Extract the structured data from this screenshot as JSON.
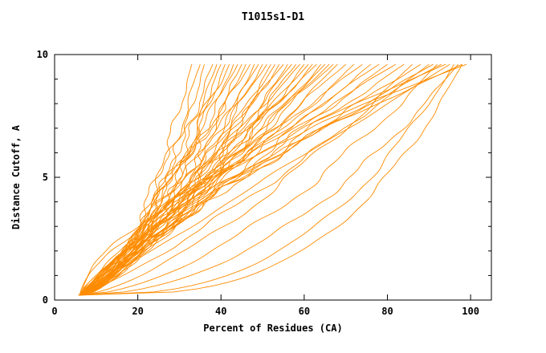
{
  "chart_data": {
    "type": "line",
    "title": "T1015s1-D1",
    "xlabel": "Percent of Residues (CA)",
    "ylabel": "Distance Cutoff, A",
    "xlim": [
      0,
      105
    ],
    "ylim": [
      0,
      10
    ],
    "x_ticks": [
      0,
      20,
      40,
      60,
      80,
      100
    ],
    "x_tick_labels": [
      "0",
      "20",
      "40",
      "60",
      "80",
      "100"
    ],
    "y_ticks": [
      0,
      5,
      10
    ],
    "y_tick_labels": [
      "0",
      "5",
      "10"
    ],
    "y_minor_ticks": [
      1,
      2,
      3,
      4,
      6,
      7,
      8,
      9
    ],
    "grid": false,
    "legend": "none",
    "line_color": "#ff8c00",
    "axis_color": "#000000",
    "curve_y_start": 0.2,
    "curve_y_top": 9.6,
    "curves": [
      {
        "x0": 6.0,
        "xe": 33,
        "p": 0.55,
        "a": 1.0,
        "f": 2.4,
        "ph": 0.5
      },
      {
        "x0": 6.5,
        "xe": 35,
        "p": 0.6,
        "a": 1.2,
        "f": 1.8,
        "ph": 1.2
      },
      {
        "x0": 5.8,
        "xe": 36,
        "p": 0.5,
        "a": 0.8,
        "f": 2.9,
        "ph": 2.0
      },
      {
        "x0": 6.2,
        "xe": 38,
        "p": 0.65,
        "a": 1.4,
        "f": 2.2,
        "ph": 3.1
      },
      {
        "x0": 6.0,
        "xe": 39,
        "p": 0.55,
        "a": 1.1,
        "f": 1.5,
        "ph": 4.2
      },
      {
        "x0": 6.8,
        "xe": 40,
        "p": 0.7,
        "a": 1.3,
        "f": 2.6,
        "ph": 5.0
      },
      {
        "x0": 6.1,
        "xe": 41,
        "p": 0.6,
        "a": 0.9,
        "f": 3.0,
        "ph": 0.9
      },
      {
        "x0": 6.4,
        "xe": 42,
        "p": 0.75,
        "a": 1.5,
        "f": 2.0,
        "ph": 1.7
      },
      {
        "x0": 5.9,
        "xe": 43,
        "p": 0.6,
        "a": 1.0,
        "f": 2.5,
        "ph": 2.6
      },
      {
        "x0": 6.3,
        "xe": 44,
        "p": 0.8,
        "a": 1.2,
        "f": 1.7,
        "ph": 3.8
      },
      {
        "x0": 6.0,
        "xe": 45,
        "p": 0.65,
        "a": 1.6,
        "f": 2.8,
        "ph": 4.9
      },
      {
        "x0": 6.6,
        "xe": 46,
        "p": 0.7,
        "a": 1.1,
        "f": 2.1,
        "ph": 0.2
      },
      {
        "x0": 6.2,
        "xe": 47,
        "p": 0.85,
        "a": 1.3,
        "f": 2.7,
        "ph": 1.4
      },
      {
        "x0": 5.7,
        "xe": 48,
        "p": 0.6,
        "a": 0.9,
        "f": 1.9,
        "ph": 2.3
      },
      {
        "x0": 6.5,
        "xe": 49,
        "p": 0.75,
        "a": 1.4,
        "f": 2.3,
        "ph": 3.5
      },
      {
        "x0": 6.1,
        "xe": 50,
        "p": 0.7,
        "a": 1.0,
        "f": 3.1,
        "ph": 4.6
      },
      {
        "x0": 6.3,
        "xe": 51,
        "p": 0.9,
        "a": 1.5,
        "f": 1.6,
        "ph": 5.5
      },
      {
        "x0": 6.0,
        "xe": 52,
        "p": 0.65,
        "a": 1.2,
        "f": 2.4,
        "ph": 0.7
      },
      {
        "x0": 6.7,
        "xe": 53,
        "p": 0.8,
        "a": 1.1,
        "f": 2.0,
        "ph": 1.9
      },
      {
        "x0": 6.2,
        "xe": 54,
        "p": 0.75,
        "a": 1.6,
        "f": 2.6,
        "ph": 3.0
      },
      {
        "x0": 5.9,
        "xe": 55,
        "p": 0.9,
        "a": 1.0,
        "f": 2.2,
        "ph": 4.1
      },
      {
        "x0": 6.4,
        "xe": 56,
        "p": 0.7,
        "a": 1.3,
        "f": 2.9,
        "ph": 5.2
      },
      {
        "x0": 6.1,
        "xe": 57,
        "p": 0.85,
        "a": 1.2,
        "f": 1.8,
        "ph": 0.4
      },
      {
        "x0": 6.5,
        "xe": 58,
        "p": 0.8,
        "a": 1.5,
        "f": 2.5,
        "ph": 1.6
      },
      {
        "x0": 6.0,
        "xe": 59,
        "p": 0.95,
        "a": 1.1,
        "f": 2.1,
        "ph": 2.8
      },
      {
        "x0": 6.3,
        "xe": 60,
        "p": 0.75,
        "a": 1.4,
        "f": 2.7,
        "ph": 3.9
      },
      {
        "x0": 6.6,
        "xe": 61,
        "p": 0.9,
        "a": 1.0,
        "f": 1.5,
        "ph": 5.1
      },
      {
        "x0": 6.1,
        "xe": 62,
        "p": 0.85,
        "a": 1.3,
        "f": 2.3,
        "ph": 0.1
      },
      {
        "x0": 5.8,
        "xe": 63,
        "p": 1.0,
        "a": 1.2,
        "f": 3.0,
        "ph": 1.3
      },
      {
        "x0": 6.4,
        "xe": 64,
        "p": 0.8,
        "a": 1.5,
        "f": 1.9,
        "ph": 2.5
      },
      {
        "x0": 6.2,
        "xe": 65,
        "p": 0.95,
        "a": 1.1,
        "f": 2.6,
        "ph": 3.7
      },
      {
        "x0": 6.0,
        "xe": 66,
        "p": 0.9,
        "a": 1.4,
        "f": 2.2,
        "ph": 4.8
      },
      {
        "x0": 6.5,
        "xe": 67,
        "p": 1.05,
        "a": 1.0,
        "f": 2.8,
        "ph": 0.6
      },
      {
        "x0": 6.1,
        "xe": 68,
        "p": 0.85,
        "a": 1.3,
        "f": 1.7,
        "ph": 1.8
      },
      {
        "x0": 6.3,
        "xe": 70,
        "p": 1.0,
        "a": 1.2,
        "f": 2.4,
        "ph": 2.9
      },
      {
        "x0": 6.6,
        "xe": 72,
        "p": 0.9,
        "a": 1.5,
        "f": 2.0,
        "ph": 4.0
      },
      {
        "x0": 6.0,
        "xe": 74,
        "p": 1.1,
        "a": 1.1,
        "f": 2.7,
        "ph": 5.3
      },
      {
        "x0": 6.2,
        "xe": 76,
        "p": 0.95,
        "a": 1.4,
        "f": 2.3,
        "ph": 0.8
      },
      {
        "x0": 6.4,
        "xe": 78,
        "p": 1.15,
        "a": 1.0,
        "f": 1.6,
        "ph": 2.1
      },
      {
        "x0": 6.1,
        "xe": 80,
        "p": 1.0,
        "a": 1.3,
        "f": 2.9,
        "ph": 3.3
      },
      {
        "x0": 5.9,
        "xe": 82,
        "p": 1.2,
        "a": 1.2,
        "f": 2.1,
        "ph": 4.4
      },
      {
        "x0": 6.3,
        "xe": 84,
        "p": 1.05,
        "a": 1.5,
        "f": 2.5,
        "ph": 5.6
      },
      {
        "x0": 6.5,
        "xe": 86,
        "p": 0.7,
        "a": 1.1,
        "f": 1.8,
        "ph": 1.0
      },
      {
        "x0": 6.0,
        "xe": 88,
        "p": 1.1,
        "a": 1.4,
        "f": 2.6,
        "ph": 2.2
      },
      {
        "x0": 6.2,
        "xe": 90,
        "p": 0.85,
        "a": 1.0,
        "f": 2.2,
        "ph": 3.4
      },
      {
        "x0": 6.4,
        "xe": 91,
        "p": 1.15,
        "a": 1.3,
        "f": 2.8,
        "ph": 4.5
      },
      {
        "x0": 6.1,
        "xe": 92,
        "p": 0.6,
        "a": 1.2,
        "f": 1.9,
        "ph": 5.7
      },
      {
        "x0": 6.0,
        "xe": 93,
        "p": 1.2,
        "a": 1.5,
        "f": 2.4,
        "ph": 1.1
      },
      {
        "x0": 6.3,
        "xe": 94,
        "p": 1.5,
        "a": 1.1,
        "f": 2.0,
        "ph": 2.4
      },
      {
        "x0": 6.1,
        "xe": 95,
        "p": 1.0,
        "a": 0.6,
        "f": 1.4,
        "ph": 3.6
      },
      {
        "x0": 6.0,
        "xe": 96,
        "p": 0.38,
        "a": 0.8,
        "f": 1.6,
        "ph": 0.3
      },
      {
        "x0": 6.2,
        "xe": 98,
        "p": 0.33,
        "a": 0.7,
        "f": 1.8,
        "ph": 1.5
      },
      {
        "x0": 6.0,
        "xe": 97,
        "p": 0.5,
        "a": 0.9,
        "f": 2.2,
        "ph": 4.7
      },
      {
        "x0": 6.3,
        "xe": 98,
        "p": 1.35,
        "a": 1.2,
        "f": 2.5,
        "ph": 5.8
      },
      {
        "x0": 6.1,
        "xe": 99,
        "p": 1.6,
        "a": 1.0,
        "f": 2.1,
        "ph": 0.9
      }
    ]
  }
}
